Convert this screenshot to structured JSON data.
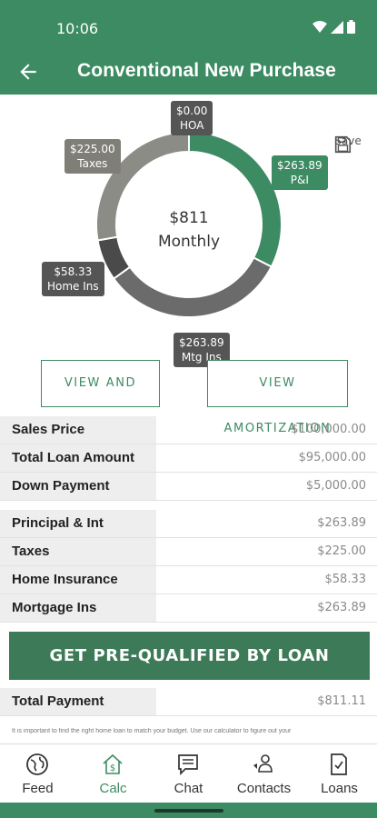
{
  "status": {
    "time": "10:06"
  },
  "header": {
    "title": "Conventional New Purchase"
  },
  "chart_data": {
    "type": "pie",
    "center": {
      "amount": "$811",
      "label": "Monthly"
    },
    "slices": [
      {
        "name": "P&I",
        "value": 263.89,
        "label": "$263.89",
        "color": "#3d8b63"
      },
      {
        "name": "Mtg Ins",
        "value": 263.89,
        "label": "$263.89",
        "color": "#6b6b6b"
      },
      {
        "name": "Home Ins",
        "value": 58.33,
        "label": "$58.33",
        "color": "#4a4a4a"
      },
      {
        "name": "Taxes",
        "value": 225.0,
        "label": "$225.00",
        "color": "#8c8c86"
      },
      {
        "name": "HOA",
        "value": 0.0,
        "label": "$0.00",
        "color": "#555555"
      }
    ]
  },
  "save": {
    "label": "Save"
  },
  "buttons": {
    "view_share": "VIEW AND SHARE",
    "view_amortization": "VIEW AMORTIZATION"
  },
  "loan_table": [
    {
      "label": "Sales Price",
      "value": "$100,000.00"
    },
    {
      "label": "Total Loan Amount",
      "value": "$95,000.00"
    },
    {
      "label": "Down Payment",
      "value": "$5,000.00"
    }
  ],
  "payment_table": [
    {
      "label": "Principal & Int",
      "value": "$263.89"
    },
    {
      "label": "Taxes",
      "value": "$225.00"
    },
    {
      "label": "Home Insurance",
      "value": "$58.33"
    },
    {
      "label": "Mortgage Ins",
      "value": "$263.89"
    }
  ],
  "cta": {
    "label": "GET PRE-QUALIFIED BY LOAN"
  },
  "total": {
    "label": "Total Payment",
    "value": "$811.11"
  },
  "disclaimer": "It is important to find the right home loan to match your budget. Use our calculator to figure out your",
  "nav": [
    {
      "label": "Feed",
      "icon": "globe-icon"
    },
    {
      "label": "Calc",
      "icon": "home-dollar-icon"
    },
    {
      "label": "Chat",
      "icon": "chat-icon"
    },
    {
      "label": "Contacts",
      "icon": "contacts-icon"
    },
    {
      "label": "Loans",
      "icon": "loans-icon"
    }
  ],
  "colors": {
    "primary": "#3d8b63",
    "cta": "#3d7a57"
  }
}
